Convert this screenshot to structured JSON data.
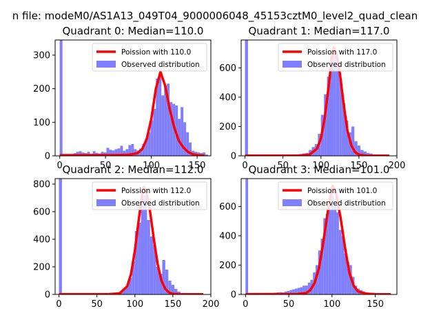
{
  "figure": {
    "title": "n file: modeM0/AS1A13_049T04_9000006048_45153cztM0_level2_quad_clean"
  },
  "colors": {
    "histogram": "#8080ff",
    "poisson": "#ff0000",
    "frame": "#000000"
  },
  "chart_data": [
    {
      "type": "bar",
      "title": "Quadrant 0: Median=110.0",
      "xlim": [
        -5,
        165
      ],
      "ylim": [
        0,
        345
      ],
      "xticks": [
        0,
        50,
        100,
        150
      ],
      "yticks": [
        0,
        100,
        200,
        300
      ],
      "series": [
        {
          "name": "Poission with 110.0",
          "kind": "line",
          "mean": 110.0,
          "points": [
            [
              0,
              2
            ],
            [
              60,
              2
            ],
            [
              75,
              3
            ],
            [
              85,
              8
            ],
            [
              90,
              20
            ],
            [
              95,
              50
            ],
            [
              100,
              110
            ],
            [
              105,
              200
            ],
            [
              110,
              250
            ],
            [
              115,
              210
            ],
            [
              120,
              140
            ],
            [
              125,
              85
            ],
            [
              130,
              45
            ],
            [
              135,
              25
            ],
            [
              140,
              12
            ],
            [
              145,
              5
            ],
            [
              150,
              2
            ],
            [
              158,
              1
            ]
          ]
        },
        {
          "name": "Observed distribution",
          "kind": "histogram",
          "bin_width": 3,
          "bins": [
            [
              0,
              345
            ],
            [
              15,
              8
            ],
            [
              18,
              12
            ],
            [
              21,
              14
            ],
            [
              24,
              10
            ],
            [
              27,
              8
            ],
            [
              30,
              12
            ],
            [
              33,
              6
            ],
            [
              36,
              14
            ],
            [
              39,
              9
            ],
            [
              42,
              7
            ],
            [
              45,
              12
            ],
            [
              48,
              10
            ],
            [
              51,
              24
            ],
            [
              54,
              18
            ],
            [
              57,
              16
            ],
            [
              60,
              20
            ],
            [
              63,
              22
            ],
            [
              66,
              30
            ],
            [
              69,
              15
            ],
            [
              72,
              20
            ],
            [
              75,
              32
            ],
            [
              78,
              35
            ],
            [
              81,
              20
            ],
            [
              84,
              16
            ],
            [
              87,
              22
            ],
            [
              90,
              35
            ],
            [
              93,
              50
            ],
            [
              96,
              70
            ],
            [
              99,
              105
            ],
            [
              102,
              140
            ],
            [
              105,
              230
            ],
            [
              108,
              245
            ],
            [
              111,
              180
            ],
            [
              114,
              210
            ],
            [
              117,
              215
            ],
            [
              120,
              160
            ],
            [
              123,
              155
            ],
            [
              126,
              150
            ],
            [
              129,
              110
            ],
            [
              132,
              145
            ],
            [
              135,
              100
            ],
            [
              138,
              70
            ],
            [
              141,
              40
            ],
            [
              144,
              15
            ],
            [
              147,
              12
            ],
            [
              150,
              10
            ],
            [
              153,
              8
            ],
            [
              156,
              10
            ],
            [
              159,
              4
            ]
          ]
        }
      ]
    },
    {
      "type": "bar",
      "title": "Quadrant 1: Median=117.0",
      "xlim": [
        -5,
        200
      ],
      "ylim": [
        0,
        790
      ],
      "xticks": [
        0,
        50,
        100,
        150,
        200
      ],
      "yticks": [
        0,
        200,
        400,
        600
      ],
      "series": [
        {
          "name": "Poission with 117.0",
          "kind": "line",
          "mean": 117.0,
          "points": [
            [
              0,
              2
            ],
            [
              70,
              2
            ],
            [
              85,
              8
            ],
            [
              95,
              50
            ],
            [
              100,
              120
            ],
            [
              105,
              260
            ],
            [
              110,
              470
            ],
            [
              115,
              690
            ],
            [
              117,
              740
            ],
            [
              120,
              700
            ],
            [
              125,
              560
            ],
            [
              130,
              350
            ],
            [
              135,
              170
            ],
            [
              140,
              70
            ],
            [
              145,
              25
            ],
            [
              150,
              8
            ],
            [
              160,
              2
            ],
            [
              190,
              1
            ]
          ]
        },
        {
          "name": "Observed distribution",
          "kind": "histogram",
          "bin_width": 4,
          "bins": [
            [
              0,
              790
            ],
            [
              56,
              4
            ],
            [
              60,
              6
            ],
            [
              64,
              8
            ],
            [
              68,
              10
            ],
            [
              72,
              12
            ],
            [
              76,
              16
            ],
            [
              80,
              20
            ],
            [
              84,
              40
            ],
            [
              88,
              60
            ],
            [
              92,
              80
            ],
            [
              96,
              150
            ],
            [
              100,
              280
            ],
            [
              104,
              420
            ],
            [
              108,
              540
            ],
            [
              112,
              680
            ],
            [
              116,
              720
            ],
            [
              120,
              600
            ],
            [
              124,
              520
            ],
            [
              128,
              360
            ],
            [
              132,
              240
            ],
            [
              136,
              160
            ],
            [
              140,
              200
            ],
            [
              144,
              100
            ],
            [
              148,
              70
            ],
            [
              152,
              40
            ],
            [
              156,
              30
            ],
            [
              160,
              20
            ],
            [
              164,
              16
            ],
            [
              168,
              10
            ],
            [
              172,
              6
            ],
            [
              176,
              4
            ],
            [
              180,
              2
            ]
          ]
        }
      ]
    },
    {
      "type": "bar",
      "title": "Quadrant 2: Median=112.0",
      "xlim": [
        -5,
        200
      ],
      "ylim": [
        0,
        840
      ],
      "xticks": [
        0,
        50,
        100,
        150,
        200
      ],
      "yticks": [
        0,
        200,
        400,
        600,
        800
      ],
      "series": [
        {
          "name": "Poission with 112.0",
          "kind": "line",
          "mean": 112.0,
          "points": [
            [
              0,
              2
            ],
            [
              65,
              2
            ],
            [
              80,
              8
            ],
            [
              90,
              60
            ],
            [
              95,
              150
            ],
            [
              100,
              320
            ],
            [
              105,
              540
            ],
            [
              110,
              740
            ],
            [
              112,
              780
            ],
            [
              115,
              750
            ],
            [
              120,
              600
            ],
            [
              125,
              400
            ],
            [
              130,
              220
            ],
            [
              135,
              100
            ],
            [
              140,
              40
            ],
            [
              145,
              14
            ],
            [
              150,
              5
            ],
            [
              160,
              1
            ],
            [
              190,
              1
            ]
          ]
        },
        {
          "name": "Observed distribution",
          "kind": "histogram",
          "bin_width": 4,
          "bins": [
            [
              0,
              840
            ],
            [
              60,
              4
            ],
            [
              64,
              6
            ],
            [
              68,
              8
            ],
            [
              72,
              10
            ],
            [
              76,
              14
            ],
            [
              80,
              20
            ],
            [
              84,
              40
            ],
            [
              88,
              60
            ],
            [
              92,
              120
            ],
            [
              96,
              240
            ],
            [
              100,
              460
            ],
            [
              104,
              520
            ],
            [
              108,
              740
            ],
            [
              112,
              720
            ],
            [
              116,
              540
            ],
            [
              120,
              420
            ],
            [
              124,
              360
            ],
            [
              128,
              200
            ],
            [
              132,
              150
            ],
            [
              136,
              250
            ],
            [
              140,
              180
            ],
            [
              144,
              100
            ],
            [
              148,
              70
            ],
            [
              152,
              40
            ],
            [
              156,
              20
            ],
            [
              160,
              10
            ],
            [
              164,
              6
            ]
          ]
        }
      ]
    },
    {
      "type": "bar",
      "title": "Quadrant 3: Median=101.0",
      "xlim": [
        -5,
        175
      ],
      "ylim": [
        0,
        790
      ],
      "xticks": [
        0,
        50,
        100,
        150
      ],
      "yticks": [
        0,
        200,
        400,
        600
      ],
      "series": [
        {
          "name": "Poission with 101.0",
          "kind": "line",
          "mean": 101.0,
          "points": [
            [
              0,
              2
            ],
            [
              60,
              3
            ],
            [
              70,
              10
            ],
            [
              75,
              30
            ],
            [
              80,
              80
            ],
            [
              85,
              180
            ],
            [
              90,
              360
            ],
            [
              95,
              560
            ],
            [
              100,
              730
            ],
            [
              101,
              740
            ],
            [
              105,
              680
            ],
            [
              110,
              520
            ],
            [
              115,
              320
            ],
            [
              120,
              150
            ],
            [
              125,
              60
            ],
            [
              130,
              20
            ],
            [
              140,
              5
            ],
            [
              150,
              2
            ],
            [
              168,
              1
            ]
          ]
        },
        {
          "name": "Observed distribution",
          "kind": "histogram",
          "bin_width": 3,
          "bins": [
            [
              0,
              790
            ],
            [
              27,
              8
            ],
            [
              30,
              10
            ],
            [
              33,
              12
            ],
            [
              36,
              14
            ],
            [
              39,
              16
            ],
            [
              42,
              14
            ],
            [
              45,
              20
            ],
            [
              48,
              24
            ],
            [
              51,
              30
            ],
            [
              54,
              35
            ],
            [
              57,
              40
            ],
            [
              60,
              45
            ],
            [
              63,
              50
            ],
            [
              66,
              60
            ],
            [
              69,
              60
            ],
            [
              72,
              80
            ],
            [
              75,
              100
            ],
            [
              78,
              150
            ],
            [
              81,
              200
            ],
            [
              84,
              300
            ],
            [
              87,
              380
            ],
            [
              90,
              520
            ],
            [
              93,
              550
            ],
            [
              96,
              580
            ],
            [
              99,
              700
            ],
            [
              102,
              620
            ],
            [
              105,
              560
            ],
            [
              108,
              440
            ],
            [
              111,
              400
            ],
            [
              114,
              280
            ],
            [
              117,
              220
            ],
            [
              120,
              200
            ],
            [
              123,
              120
            ],
            [
              126,
              60
            ],
            [
              129,
              40
            ],
            [
              132,
              30
            ],
            [
              135,
              20
            ],
            [
              138,
              14
            ],
            [
              141,
              10
            ],
            [
              144,
              6
            ],
            [
              147,
              4
            ],
            [
              150,
              2
            ]
          ]
        }
      ]
    }
  ]
}
